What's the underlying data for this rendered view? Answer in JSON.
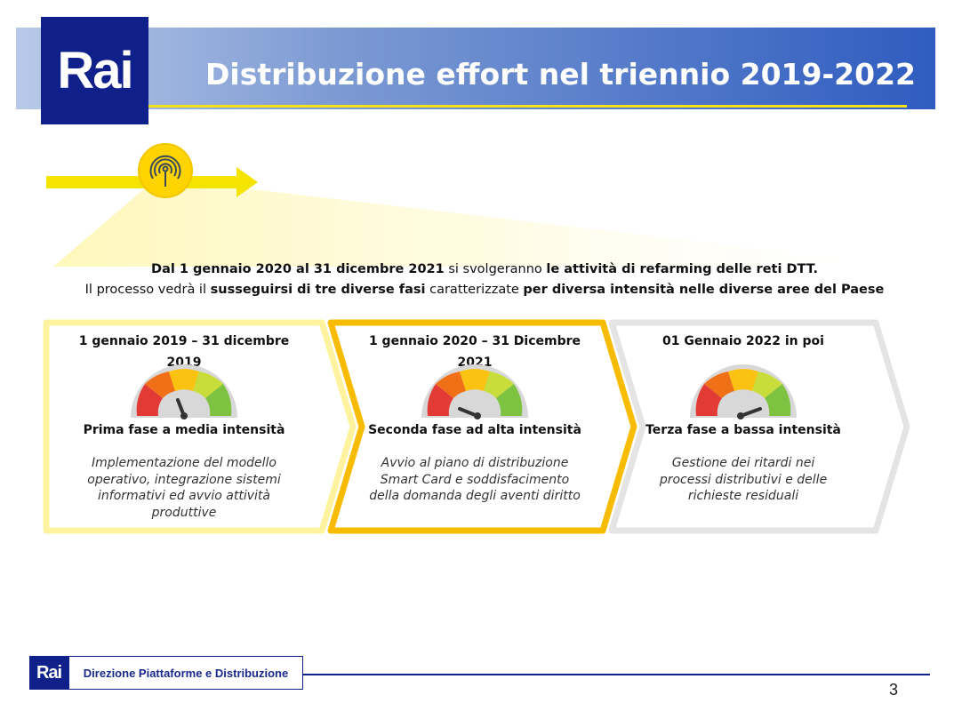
{
  "header": {
    "logo": "Rai",
    "title": "Distribuzione effort nel triennio 2019-2022"
  },
  "intro": {
    "line1_part1": "Dal 1 gennaio 2020 al 31 dicembre 2021",
    "line1_part2": " si svolgeranno ",
    "line1_part3": "le attività di refarming delle reti DTT.",
    "line2_part1": "Il processo vedrà il ",
    "line2_part2": "susseguirsi di tre diverse fasi",
    "line2_part3": " caratterizzate ",
    "line2_part4": "per diversa intensità nelle diverse aree del Paese"
  },
  "phases": [
    {
      "date": "1 gennaio 2019 – 31 dicembre 2019",
      "name": "Prima fase a media intensità",
      "desc1": "Implementazione del modello",
      "desc2": "operativo, integrazione sistemi",
      "desc3": "informativi ed avvio attività produttive",
      "intensity": "media"
    },
    {
      "date": "1 gennaio 2020 – 31 Dicembre 2021",
      "name": "Seconda fase ad alta intensità",
      "desc1": "Avvio al piano di distribuzione",
      "desc2": "Smart Card e soddisfacimento",
      "desc3": "della domanda degli aventi diritto",
      "intensity": "alta"
    },
    {
      "date": "01 Gennaio 2022 in poi",
      "name": "Terza fase a bassa intensità",
      "desc1": "Gestione dei ritardi nei",
      "desc2": "processi distributivi e delle",
      "desc3": "richieste residuali",
      "intensity": "bassa"
    }
  ],
  "footer": {
    "logo": "Rai",
    "label": "Direzione Piattaforme e Distribuzione",
    "page_number": "3"
  },
  "colors": {
    "rai_blue": "#10208a",
    "yellow": "#f5e300",
    "panel1_border": "#fff3a0",
    "panel2_border": "#f7bc00",
    "panel3_border": "#e4e4e4"
  }
}
